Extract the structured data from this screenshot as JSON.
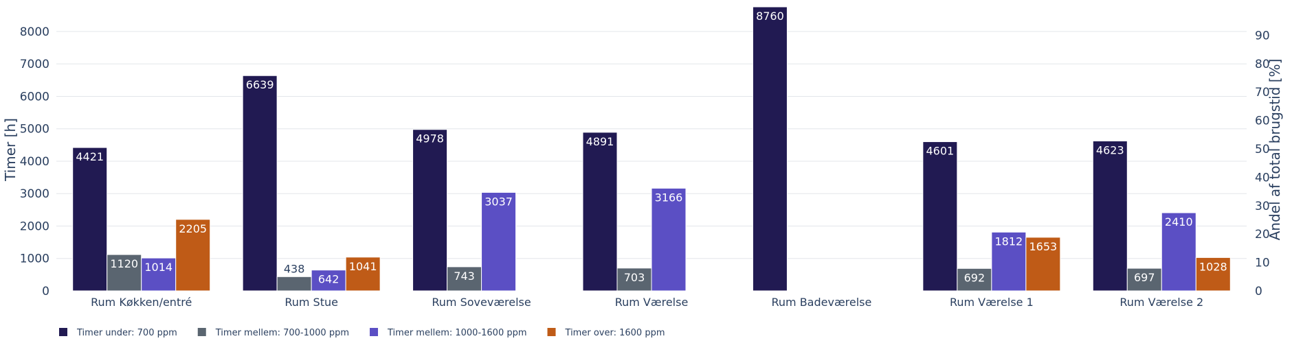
{
  "chart_data": {
    "type": "bar",
    "categories": [
      "Rum Køkken/entré",
      "Rum Stue",
      "Rum Soveværelse",
      "Rum Værelse",
      "Rum Badeværelse",
      "Rum Værelse 1",
      "Rum Værelse 2"
    ],
    "series": [
      {
        "name": "Timer under: 700 ppm",
        "color": "#211a52",
        "values": [
          4421,
          6639,
          4978,
          4891,
          8760,
          4601,
          4623
        ]
      },
      {
        "name": "Timer mellem: 700-1000 ppm",
        "color": "#5a6570",
        "values": [
          1120,
          438,
          743,
          703,
          null,
          692,
          697
        ]
      },
      {
        "name": "Timer mellem: 1000-1600 ppm",
        "color": "#5b4fc4",
        "values": [
          1014,
          642,
          3037,
          3166,
          null,
          1812,
          2410
        ]
      },
      {
        "name": "Timer over: 1600 ppm",
        "color": "#bf5b17",
        "values": [
          2205,
          1041,
          null,
          null,
          null,
          1653,
          1028
        ]
      }
    ],
    "ylabel": "Timer [h]",
    "y2label": "Andel af total brugstid [%]",
    "ylim": [
      0,
      8760
    ],
    "yticks": [
      0,
      1000,
      2000,
      3000,
      4000,
      5000,
      6000,
      7000,
      8000
    ],
    "y2lim": [
      0,
      100
    ],
    "y2ticks": [
      0,
      10,
      20,
      30,
      40,
      50,
      60,
      70,
      80,
      90
    ],
    "grid": true,
    "legend_position": "bottom-left"
  }
}
